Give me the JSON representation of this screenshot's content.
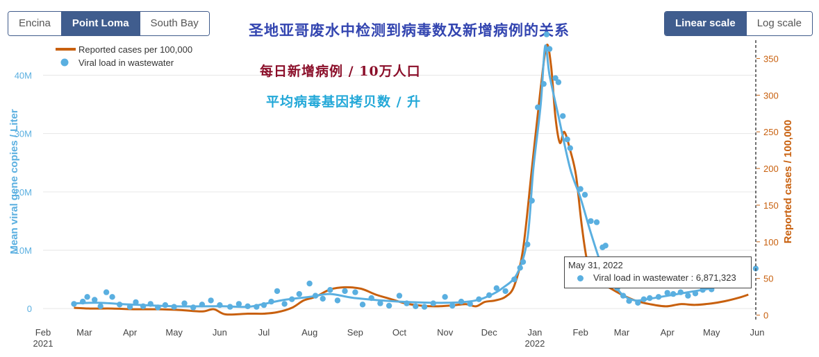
{
  "sites": {
    "items": [
      {
        "label": "Encina",
        "active": false
      },
      {
        "label": "Point Loma",
        "active": true
      },
      {
        "label": "South Bay",
        "active": false
      }
    ]
  },
  "scale": {
    "items": [
      {
        "label": "Linear scale",
        "active": true
      },
      {
        "label": "Log scale",
        "active": false
      }
    ]
  },
  "colors": {
    "viral": "#5aafe0",
    "cases": "#c8600e",
    "accent": "#405d8e"
  },
  "tooltip": {
    "date": "May 31, 2022",
    "text": "Viral load in wastewater : 6,871,323"
  },
  "annotations": {
    "cases": "每日新增病例 / 10万人口",
    "viral": "平均病毒基因拷贝数 / 升"
  },
  "chart_data": {
    "type": "line",
    "title": "圣地亚哥废水中检测到病毒数及新增病例的关系",
    "x_axis": {
      "range": [
        "2021-02-01",
        "2022-06-01"
      ],
      "ticks": [
        {
          "date": "2021-02-01",
          "label": "Feb",
          "sub": "2021"
        },
        {
          "date": "2021-03-01",
          "label": "Mar"
        },
        {
          "date": "2021-04-01",
          "label": "Apr"
        },
        {
          "date": "2021-05-01",
          "label": "May"
        },
        {
          "date": "2021-06-01",
          "label": "Jun"
        },
        {
          "date": "2021-07-01",
          "label": "Jul"
        },
        {
          "date": "2021-08-01",
          "label": "Aug"
        },
        {
          "date": "2021-09-01",
          "label": "Sep"
        },
        {
          "date": "2021-10-01",
          "label": "Oct"
        },
        {
          "date": "2021-11-01",
          "label": "Nov"
        },
        {
          "date": "2021-12-01",
          "label": "Dec"
        },
        {
          "date": "2022-01-01",
          "label": "Jan",
          "sub": "2022"
        },
        {
          "date": "2022-02-01",
          "label": "Feb"
        },
        {
          "date": "2022-03-01",
          "label": "Mar"
        },
        {
          "date": "2022-04-01",
          "label": "Apr"
        },
        {
          "date": "2022-05-01",
          "label": "May"
        },
        {
          "date": "2022-06-01",
          "label": "Jun"
        }
      ]
    },
    "y_left": {
      "label": "Mean viral gene copies / Liter",
      "range": [
        -2000000,
        46000000
      ],
      "ticks": [
        0,
        10000000,
        20000000,
        30000000,
        40000000
      ],
      "tick_labels": [
        "0",
        "10M",
        "20M",
        "30M",
        "40M"
      ]
    },
    "y_right": {
      "label": "Reported cases / 100,000",
      "range": [
        -7,
        375
      ],
      "ticks": [
        0,
        50,
        100,
        150,
        200,
        250,
        300,
        350
      ]
    },
    "grid": true,
    "legend_position": "top-left",
    "series": [
      {
        "name": "Reported cases per 100,000",
        "axis": "right",
        "kind": "line",
        "points": [
          [
            "2021-02-22",
            10
          ],
          [
            "2021-03-05",
            9
          ],
          [
            "2021-03-20",
            9
          ],
          [
            "2021-04-05",
            8
          ],
          [
            "2021-04-20",
            8
          ],
          [
            "2021-05-05",
            7
          ],
          [
            "2021-05-20",
            5
          ],
          [
            "2021-05-28",
            8
          ],
          [
            "2021-06-05",
            1
          ],
          [
            "2021-06-20",
            2
          ],
          [
            "2021-07-01",
            2
          ],
          [
            "2021-07-10",
            4
          ],
          [
            "2021-07-20",
            10
          ],
          [
            "2021-07-28",
            20
          ],
          [
            "2021-08-05",
            25
          ],
          [
            "2021-08-15",
            35
          ],
          [
            "2021-08-25",
            38
          ],
          [
            "2021-09-05",
            36
          ],
          [
            "2021-09-15",
            28
          ],
          [
            "2021-09-25",
            22
          ],
          [
            "2021-10-05",
            16
          ],
          [
            "2021-10-15",
            13
          ],
          [
            "2021-10-25",
            12
          ],
          [
            "2021-11-05",
            13
          ],
          [
            "2021-11-15",
            15
          ],
          [
            "2021-11-22",
            12
          ],
          [
            "2021-11-28",
            18
          ],
          [
            "2021-12-05",
            20
          ],
          [
            "2021-12-12",
            25
          ],
          [
            "2021-12-18",
            40
          ],
          [
            "2021-12-24",
            90
          ],
          [
            "2021-12-30",
            200
          ],
          [
            "2022-01-05",
            310
          ],
          [
            "2022-01-09",
            368
          ],
          [
            "2022-01-12",
            340
          ],
          [
            "2022-01-15",
            270
          ],
          [
            "2022-01-18",
            235
          ],
          [
            "2022-01-21",
            250
          ],
          [
            "2022-01-25",
            225
          ],
          [
            "2022-01-29",
            190
          ],
          [
            "2022-02-02",
            120
          ],
          [
            "2022-02-06",
            70
          ],
          [
            "2022-02-12",
            45
          ],
          [
            "2022-02-20",
            38
          ],
          [
            "2022-03-01",
            28
          ],
          [
            "2022-03-10",
            20
          ],
          [
            "2022-03-20",
            15
          ],
          [
            "2022-03-31",
            12
          ],
          [
            "2022-04-10",
            15
          ],
          [
            "2022-04-20",
            14
          ],
          [
            "2022-05-01",
            16
          ],
          [
            "2022-05-10",
            19
          ],
          [
            "2022-05-20",
            24
          ],
          [
            "2022-05-26",
            28
          ]
        ]
      },
      {
        "name": "Viral load in wastewater",
        "axis": "left",
        "kind": "line+markers",
        "trend": [
          [
            "2021-02-22",
            900000
          ],
          [
            "2021-03-10",
            1000000
          ],
          [
            "2021-04-01",
            700000
          ],
          [
            "2021-05-01",
            400000
          ],
          [
            "2021-06-01",
            400000
          ],
          [
            "2021-06-20",
            300000
          ],
          [
            "2021-07-01",
            800000
          ],
          [
            "2021-07-15",
            1500000
          ],
          [
            "2021-08-01",
            2000000
          ],
          [
            "2021-08-15",
            2500000
          ],
          [
            "2021-09-01",
            1800000
          ],
          [
            "2021-10-01",
            1200000
          ],
          [
            "2021-11-01",
            1000000
          ],
          [
            "2021-11-20",
            1300000
          ],
          [
            "2021-12-01",
            2200000
          ],
          [
            "2021-12-10",
            3500000
          ],
          [
            "2021-12-20",
            6000000
          ],
          [
            "2021-12-27",
            12000000
          ],
          [
            "2021-12-31",
            24000000
          ],
          [
            "2022-01-05",
            35000000
          ],
          [
            "2022-01-08",
            45000000
          ],
          [
            "2022-01-11",
            40000000
          ],
          [
            "2022-01-17",
            33000000
          ],
          [
            "2022-01-25",
            24000000
          ],
          [
            "2022-02-01",
            19000000
          ],
          [
            "2022-02-08",
            13000000
          ],
          [
            "2022-02-16",
            7000000
          ],
          [
            "2022-02-22",
            5000000
          ],
          [
            "2022-03-01",
            2500000
          ],
          [
            "2022-03-10",
            1400000
          ],
          [
            "2022-03-20",
            1700000
          ],
          [
            "2022-04-01",
            2200000
          ],
          [
            "2022-04-15",
            2800000
          ],
          [
            "2022-05-01",
            3500000
          ],
          [
            "2022-05-05",
            4000000
          ]
        ],
        "points": [
          [
            "2021-02-22",
            800000
          ],
          [
            "2021-02-28",
            1200000
          ],
          [
            "2021-03-03",
            2000000
          ],
          [
            "2021-03-08",
            1500000
          ],
          [
            "2021-03-12",
            400000
          ],
          [
            "2021-03-16",
            2800000
          ],
          [
            "2021-03-20",
            2000000
          ],
          [
            "2021-03-25",
            700000
          ],
          [
            "2021-04-01",
            300000
          ],
          [
            "2021-04-05",
            1100000
          ],
          [
            "2021-04-10",
            400000
          ],
          [
            "2021-04-15",
            800000
          ],
          [
            "2021-04-20",
            200000
          ],
          [
            "2021-04-25",
            600000
          ],
          [
            "2021-05-01",
            300000
          ],
          [
            "2021-05-08",
            900000
          ],
          [
            "2021-05-14",
            200000
          ],
          [
            "2021-05-20",
            700000
          ],
          [
            "2021-05-26",
            1400000
          ],
          [
            "2021-06-01",
            600000
          ],
          [
            "2021-06-08",
            300000
          ],
          [
            "2021-06-14",
            800000
          ],
          [
            "2021-06-20",
            400000
          ],
          [
            "2021-06-26",
            300000
          ],
          [
            "2021-07-01",
            600000
          ],
          [
            "2021-07-06",
            1200000
          ],
          [
            "2021-07-10",
            3000000
          ],
          [
            "2021-07-15",
            800000
          ],
          [
            "2021-07-20",
            1600000
          ],
          [
            "2021-07-25",
            2500000
          ],
          [
            "2021-08-01",
            4300000
          ],
          [
            "2021-08-05",
            2200000
          ],
          [
            "2021-08-10",
            1700000
          ],
          [
            "2021-08-15",
            3200000
          ],
          [
            "2021-08-20",
            1400000
          ],
          [
            "2021-08-25",
            3000000
          ],
          [
            "2021-09-01",
            2800000
          ],
          [
            "2021-09-06",
            700000
          ],
          [
            "2021-09-12",
            1800000
          ],
          [
            "2021-09-18",
            900000
          ],
          [
            "2021-09-24",
            500000
          ],
          [
            "2021-10-01",
            2200000
          ],
          [
            "2021-10-06",
            900000
          ],
          [
            "2021-10-12",
            400000
          ],
          [
            "2021-10-18",
            300000
          ],
          [
            "2021-10-24",
            900000
          ],
          [
            "2021-11-01",
            2000000
          ],
          [
            "2021-11-06",
            500000
          ],
          [
            "2021-11-12",
            1200000
          ],
          [
            "2021-11-18",
            800000
          ],
          [
            "2021-11-24",
            1600000
          ],
          [
            "2021-12-01",
            2300000
          ],
          [
            "2021-12-06",
            3500000
          ],
          [
            "2021-12-12",
            3000000
          ],
          [
            "2021-12-18",
            5000000
          ],
          [
            "2021-12-22",
            7000000
          ],
          [
            "2021-12-24",
            8000000
          ],
          [
            "2021-12-27",
            11000000
          ],
          [
            "2021-12-30",
            18500000
          ],
          [
            "2022-01-03",
            34500000
          ],
          [
            "2022-01-07",
            38500000
          ],
          [
            "2022-01-09",
            47000000
          ],
          [
            "2022-01-11",
            44500000
          ],
          [
            "2022-01-15",
            39500000
          ],
          [
            "2022-01-17",
            38800000
          ],
          [
            "2022-01-20",
            33000000
          ],
          [
            "2022-01-23",
            29000000
          ],
          [
            "2022-01-25",
            27500000
          ],
          [
            "2022-02-01",
            20500000
          ],
          [
            "2022-02-04",
            19500000
          ],
          [
            "2022-02-08",
            15000000
          ],
          [
            "2022-02-12",
            14800000
          ],
          [
            "2022-02-16",
            10500000
          ],
          [
            "2022-02-18",
            10800000
          ],
          [
            "2022-02-22",
            5500000
          ],
          [
            "2022-02-26",
            3500000
          ],
          [
            "2022-03-02",
            2200000
          ],
          [
            "2022-03-06",
            1300000
          ],
          [
            "2022-03-12",
            1000000
          ],
          [
            "2022-03-16",
            1600000
          ],
          [
            "2022-03-20",
            1800000
          ],
          [
            "2022-03-26",
            2000000
          ],
          [
            "2022-04-01",
            2700000
          ],
          [
            "2022-04-05",
            2500000
          ],
          [
            "2022-04-10",
            2800000
          ],
          [
            "2022-04-15",
            2200000
          ],
          [
            "2022-04-20",
            2600000
          ],
          [
            "2022-04-25",
            3200000
          ],
          [
            "2022-05-01",
            3300000
          ],
          [
            "2022-05-05",
            4000000
          ],
          [
            "2022-05-31",
            6871323
          ]
        ]
      }
    ]
  }
}
